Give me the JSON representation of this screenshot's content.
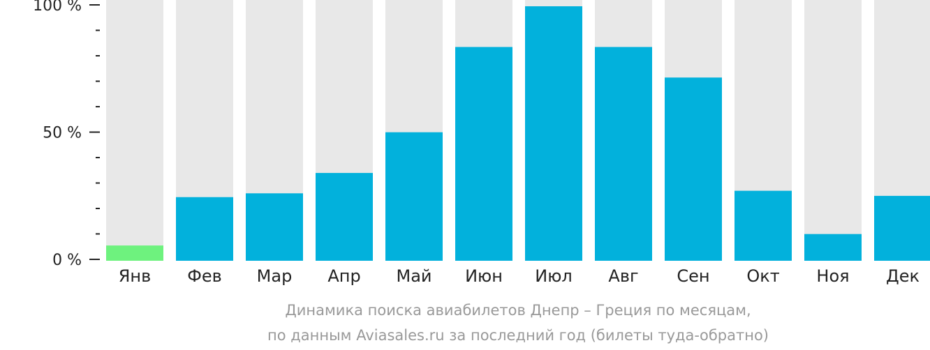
{
  "chart_data": {
    "type": "bar",
    "categories": [
      "Янв",
      "Фев",
      "Мар",
      "Апр",
      "Май",
      "Июн",
      "Июл",
      "Авг",
      "Сен",
      "Окт",
      "Ноя",
      "Дек"
    ],
    "values": [
      6,
      25,
      26.5,
      34.5,
      50.5,
      84,
      100,
      84,
      72,
      27.5,
      10.5,
      25.5
    ],
    "ylim": [
      0,
      100
    ],
    "yticks": [
      {
        "value": 0,
        "label": "0 %"
      },
      {
        "value": 50,
        "label": "50 %"
      },
      {
        "value": 100,
        "label": "100 %"
      }
    ],
    "minor_tick_step": 10,
    "grid": false,
    "colors": {
      "bar": "#02b1dc",
      "highlight": "#6ef27e",
      "track": "#e8e8e8",
      "axis": "#222222"
    },
    "highlight_index": 0,
    "caption": [
      "Динамика поиска авиабилетов Днепр – Греция по месяцам,",
      "по данным Aviasales.ru за последний год (билеты туда-обратно)"
    ]
  }
}
